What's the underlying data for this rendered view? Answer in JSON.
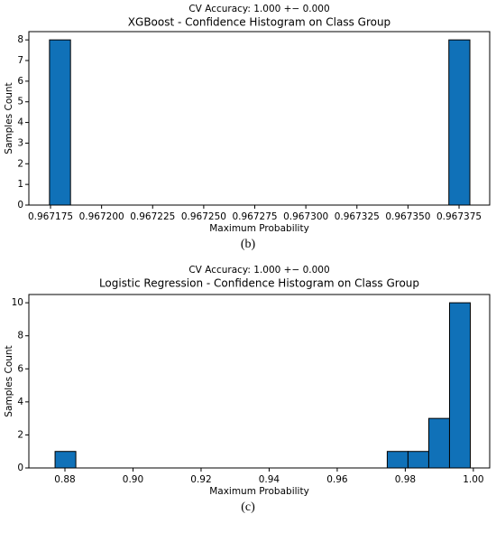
{
  "chart_data": [
    {
      "type": "histogram",
      "subtitle": "CV Accuracy: 1.000 +− 0.000",
      "title": "XGBoost - Confidence Histogram on Class Group",
      "xlabel": "Maximum Probability",
      "ylabel": "Samples Count",
      "caption": "(b)",
      "color": "#1071b8",
      "bins": [
        0.9671745,
        0.96718479,
        0.96719508,
        0.96720537,
        0.96721566,
        0.96722595,
        0.96723624,
        0.96724653,
        0.96725682,
        0.96726711,
        0.9672774,
        0.96728769,
        0.96729798,
        0.96730827,
        0.96731856,
        0.96732885,
        0.96733914,
        0.96734943,
        0.96735972,
        0.96737001,
        0.9673803
      ],
      "values": [
        8,
        0,
        0,
        0,
        0,
        0,
        0,
        0,
        0,
        0,
        0,
        0,
        0,
        0,
        0,
        0,
        0,
        0,
        0,
        8
      ],
      "xlim": [
        0.9671644,
        0.96739
      ],
      "ylim": [
        0,
        8.4
      ],
      "xticks": [
        0.967175,
        {
          "value": 0.9672,
          "label": "0.967200"
        },
        0.967225,
        {
          "value": 0.96725,
          "label": "0.967250"
        },
        0.967275,
        {
          "value": 0.9673,
          "label": "0.967300"
        },
        0.967325,
        {
          "value": 0.96735,
          "label": "0.967350"
        },
        0.967375
      ],
      "yticks": [
        0,
        1,
        2,
        3,
        4,
        5,
        6,
        7,
        8
      ]
    },
    {
      "type": "histogram",
      "subtitle": "CV Accuracy: 1.000 +− 0.000",
      "title": "Logistic Regression - Confidence Histogram on Class Group",
      "xlabel": "Maximum Probability",
      "ylabel": "Samples Count",
      "caption": "(c)",
      "color": "#1071b8",
      "bins": [
        0.8771,
        0.8832,
        0.8893,
        0.8954,
        0.9015,
        0.9076,
        0.9137,
        0.9198,
        0.9259,
        0.932,
        0.9381,
        0.9442,
        0.9503,
        0.9564,
        0.9625,
        0.9686,
        0.9747,
        0.9808,
        0.9869,
        0.993,
        0.9991
      ],
      "values": [
        1,
        0,
        0,
        0,
        0,
        0,
        0,
        0,
        0,
        0,
        0,
        0,
        0,
        0,
        0,
        0,
        1,
        1,
        3,
        10
      ],
      "xlim": [
        0.8694,
        1.0048
      ],
      "ylim": [
        0,
        10.5
      ],
      "xticks": [
        0.88,
        {
          "value": 0.9,
          "label": "0.90"
        },
        0.92,
        0.94,
        0.96,
        0.98,
        {
          "value": 1,
          "label": "1.00"
        }
      ],
      "yticks": [
        0,
        2,
        4,
        6,
        8,
        10
      ]
    }
  ]
}
